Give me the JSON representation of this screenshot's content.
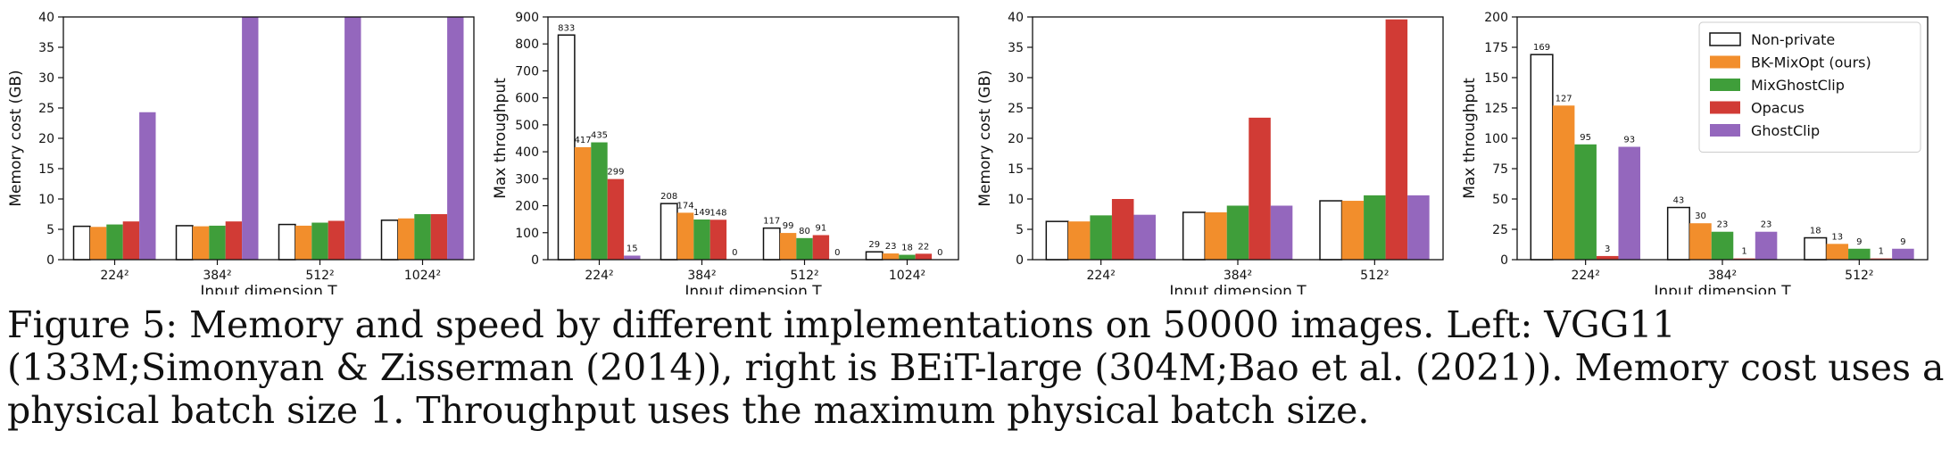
{
  "colors": {
    "Non-private": "#ffffff",
    "BK-MixOpt (ours)": "#f28e2c",
    "MixGhostClip": "#3f9e3a",
    "Opacus": "#d13b35",
    "GhostClip": "#9467bd",
    "edge": "#111111"
  },
  "legend_entries": [
    "Non-private",
    "BK-MixOpt (ours)",
    "MixGhostClip",
    "Opacus",
    "GhostClip"
  ],
  "caption": {
    "label": "Figure 5:",
    "text": "Memory and speed by different implementations on 50000 images. Left: VGG11 (133M;Simonyan & Zisserman (2014)), right is BEiT-large (304M;Bao et al. (2021)). Memory cost uses a physical batch size 1. Throughput uses the maximum physical batch size."
  },
  "chart_data": [
    {
      "type": "bar",
      "panel": "VGG11 memory",
      "ylabel": "Memory cost (GB)",
      "xlabel": "Input dimension T",
      "ylim": [
        0,
        40
      ],
      "yticks": [
        0,
        5,
        10,
        15,
        20,
        25,
        30,
        35,
        40
      ],
      "categories": [
        "224²",
        "384²",
        "512²",
        "1024²"
      ],
      "show_labels": false,
      "legend": false,
      "series": [
        {
          "name": "Non-private",
          "values": [
            5.5,
            5.6,
            5.8,
            6.5
          ]
        },
        {
          "name": "BK-MixOpt (ours)",
          "values": [
            5.4,
            5.5,
            5.6,
            6.8
          ]
        },
        {
          "name": "MixGhostClip",
          "values": [
            5.8,
            5.6,
            6.1,
            7.5
          ]
        },
        {
          "name": "Opacus",
          "values": [
            6.3,
            6.3,
            6.4,
            7.5
          ]
        },
        {
          "name": "GhostClip",
          "values": [
            24.3,
            40,
            40,
            40
          ]
        }
      ]
    },
    {
      "type": "bar",
      "panel": "VGG11 throughput",
      "ylabel": "Max throughput",
      "xlabel": "Input dimension T",
      "ylim": [
        0,
        900
      ],
      "yticks": [
        0,
        100,
        200,
        300,
        400,
        500,
        600,
        700,
        800,
        900
      ],
      "categories": [
        "224²",
        "384²",
        "512²",
        "1024²"
      ],
      "show_labels": true,
      "legend": false,
      "series": [
        {
          "name": "Non-private",
          "values": [
            833,
            208,
            117,
            29
          ]
        },
        {
          "name": "BK-MixOpt (ours)",
          "values": [
            417,
            174,
            99,
            23
          ]
        },
        {
          "name": "MixGhostClip",
          "values": [
            435,
            149,
            80,
            18
          ]
        },
        {
          "name": "Opacus",
          "values": [
            299,
            148,
            91,
            22
          ]
        },
        {
          "name": "GhostClip",
          "values": [
            15,
            0,
            0,
            0
          ]
        }
      ]
    },
    {
      "type": "bar",
      "panel": "BEiT-large memory",
      "ylabel": "Memory cost (GB)",
      "xlabel": "Input dimension T",
      "ylim": [
        0,
        40
      ],
      "yticks": [
        0,
        5,
        10,
        15,
        20,
        25,
        30,
        35,
        40
      ],
      "categories": [
        "224²",
        "384²",
        "512²"
      ],
      "show_labels": false,
      "legend": false,
      "series": [
        {
          "name": "Non-private",
          "values": [
            6.3,
            7.8,
            9.7
          ]
        },
        {
          "name": "BK-MixOpt (ours)",
          "values": [
            6.3,
            7.8,
            9.7
          ]
        },
        {
          "name": "MixGhostClip",
          "values": [
            7.3,
            8.9,
            10.6
          ]
        },
        {
          "name": "Opacus",
          "values": [
            10.0,
            23.4,
            39.6
          ]
        },
        {
          "name": "GhostClip",
          "values": [
            7.4,
            8.9,
            10.6
          ]
        }
      ]
    },
    {
      "type": "bar",
      "panel": "BEiT-large throughput",
      "ylabel": "Max throughput",
      "xlabel": "Input dimension T",
      "ylim": [
        0,
        200
      ],
      "yticks": [
        0,
        25,
        50,
        75,
        100,
        125,
        150,
        175,
        200
      ],
      "categories": [
        "224²",
        "384²",
        "512²"
      ],
      "show_labels": true,
      "legend": true,
      "legend_position": "top-right",
      "series": [
        {
          "name": "Non-private",
          "values": [
            169,
            43,
            18
          ]
        },
        {
          "name": "BK-MixOpt (ours)",
          "values": [
            127,
            30,
            13
          ]
        },
        {
          "name": "MixGhostClip",
          "values": [
            95,
            23,
            9
          ]
        },
        {
          "name": "Opacus",
          "values": [
            3,
            1,
            1
          ]
        },
        {
          "name": "GhostClip",
          "values": [
            93,
            23,
            9
          ]
        }
      ]
    }
  ]
}
